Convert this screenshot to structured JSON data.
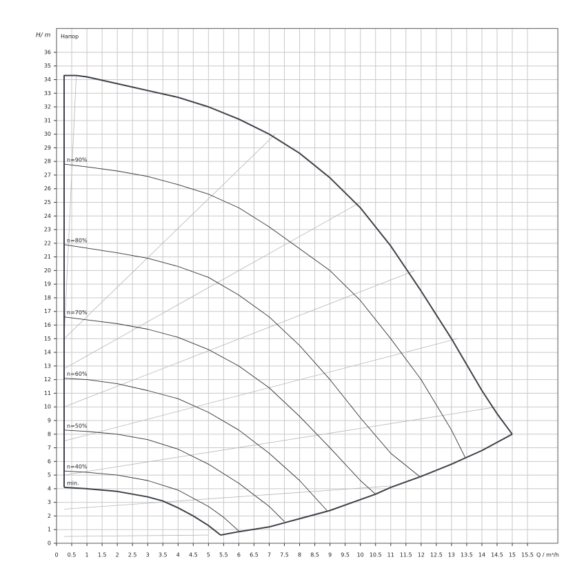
{
  "chart_data": {
    "type": "line",
    "y_label": "H/ m",
    "title": "Напор",
    "x_label": "Q / m³/h",
    "xlim": [
      0,
      16.5
    ],
    "ylim": [
      0,
      37.75
    ],
    "xticks": [
      0,
      0.5,
      1,
      1.5,
      2,
      2.5,
      3,
      3.5,
      4,
      4.5,
      5,
      5.5,
      6,
      6.5,
      7,
      7.5,
      8,
      8.5,
      9,
      9.5,
      10,
      10.5,
      11,
      11.5,
      12,
      12.5,
      13,
      13.5,
      14,
      14.5,
      15,
      15.5
    ],
    "yticks": [
      0,
      1,
      2,
      3,
      4,
      5,
      6,
      7,
      8,
      9,
      10,
      11,
      12,
      13,
      14,
      15,
      16,
      17,
      18,
      19,
      20,
      21,
      22,
      23,
      24,
      25,
      26,
      27,
      28,
      29,
      30,
      31,
      32,
      33,
      34,
      35,
      36
    ],
    "grid": true,
    "series": [
      {
        "color": "#b4b4b4",
        "line_width": 0.8,
        "x": [
          0.65,
          0.25
        ],
        "values": [
          34.3,
          15
        ]
      },
      {
        "color": "#b4b4b4",
        "line_width": 0.8,
        "x": [
          0.25,
          7.2
        ],
        "values": [
          15,
          30
        ]
      },
      {
        "color": "#b4b4b4",
        "line_width": 0.8,
        "x": [
          0.25,
          10
        ],
        "values": [
          12.8,
          25
        ]
      },
      {
        "color": "#b4b4b4",
        "line_width": 0.8,
        "x": [
          0.25,
          11.8
        ],
        "values": [
          10,
          20
        ]
      },
      {
        "color": "#b4b4b4",
        "line_width": 0.8,
        "x": [
          0.25,
          13.2
        ],
        "values": [
          7.5,
          15
        ]
      },
      {
        "color": "#b4b4b4",
        "line_width": 0.8,
        "x": [
          0.25,
          14.5
        ],
        "values": [
          5,
          10
        ]
      },
      {
        "color": "#b4b4b4",
        "line_width": 0.8,
        "x": [
          0.25,
          11
        ],
        "values": [
          2.5,
          4.2
        ]
      },
      {
        "color": "#b4b4b4",
        "line_width": 0.8,
        "x": [
          0.25,
          5
        ],
        "values": [
          0.5,
          0.6
        ]
      },
      {
        "color": "#3c4148",
        "line_width": 2,
        "x": [
          0.25,
          0.25,
          0.65,
          1,
          2,
          3,
          4,
          5,
          6,
          7,
          8,
          9,
          10,
          11,
          12,
          13,
          14,
          14.5,
          15
        ],
        "values": [
          4.1,
          34.3,
          34.3,
          34.2,
          33.7,
          33.2,
          32.7,
          32,
          31.1,
          30,
          28.6,
          26.8,
          24.6,
          21.8,
          18.5,
          15,
          11.2,
          9.5,
          8
        ]
      },
      {
        "color": "#3c4148",
        "line_width": 2,
        "x": [
          5.4,
          6,
          7,
          7.5,
          8,
          9,
          10,
          10.5,
          11,
          12,
          13,
          13.5,
          14,
          15
        ],
        "values": [
          0.6,
          0.85,
          1.2,
          1.5,
          1.8,
          2.4,
          3.2,
          3.6,
          4.1,
          4.9,
          5.8,
          6.3,
          6.8,
          8
        ]
      },
      {
        "name": "n=90%",
        "color": "#303030",
        "line_width": 0.9,
        "x": [
          0.25,
          1,
          2,
          3,
          4,
          5,
          6,
          7,
          8,
          9,
          10,
          11,
          12,
          13,
          13.45
        ],
        "values": [
          27.8,
          27.6,
          27.3,
          26.9,
          26.3,
          25.6,
          24.6,
          23.2,
          21.6,
          20,
          17.8,
          15,
          12,
          8.3,
          6.3
        ]
      },
      {
        "name": "n=80%",
        "color": "#303030",
        "line_width": 0.9,
        "x": [
          0.25,
          2,
          3,
          4,
          5,
          6,
          7,
          8,
          9,
          10,
          11,
          11.95
        ],
        "values": [
          21.9,
          21.3,
          20.9,
          20.3,
          19.5,
          18.2,
          16.6,
          14.5,
          12,
          9.2,
          6.6,
          4.9
        ]
      },
      {
        "name": "n=70%",
        "color": "#303030",
        "line_width": 0.9,
        "x": [
          0.25,
          2,
          3,
          4,
          5,
          6,
          7,
          8,
          9,
          10,
          10.5
        ],
        "values": [
          16.6,
          16.1,
          15.7,
          15.1,
          14.2,
          13,
          11.4,
          9.3,
          7,
          4.6,
          3.6
        ]
      },
      {
        "name": "n=60%",
        "color": "#303030",
        "line_width": 0.9,
        "x": [
          0.25,
          1,
          2,
          3,
          4,
          5,
          6,
          7,
          8,
          8.9
        ],
        "values": [
          12.1,
          12,
          11.7,
          11.2,
          10.6,
          9.6,
          8.3,
          6.6,
          4.6,
          2.4
        ]
      },
      {
        "name": "n=50%",
        "color": "#303030",
        "line_width": 0.9,
        "x": [
          0.25,
          1,
          2,
          3,
          4,
          5,
          6,
          7,
          7.5
        ],
        "values": [
          8.3,
          8.2,
          8,
          7.6,
          6.9,
          5.8,
          4.4,
          2.7,
          1.6
        ]
      },
      {
        "name": "n=40%",
        "color": "#303030",
        "line_width": 0.9,
        "x": [
          0.25,
          1,
          2,
          3,
          4,
          5,
          5.5,
          6
        ],
        "values": [
          5.3,
          5.2,
          5,
          4.6,
          3.9,
          2.7,
          1.9,
          0.9
        ]
      },
      {
        "name": "min.",
        "color": "#3c4148",
        "line_width": 2,
        "x": [
          0.25,
          1,
          2,
          3,
          3.5,
          4,
          4.5,
          5,
          5.4
        ],
        "values": [
          4.1,
          4,
          3.8,
          3.4,
          3.1,
          2.6,
          2,
          1.3,
          0.6
        ]
      }
    ]
  }
}
